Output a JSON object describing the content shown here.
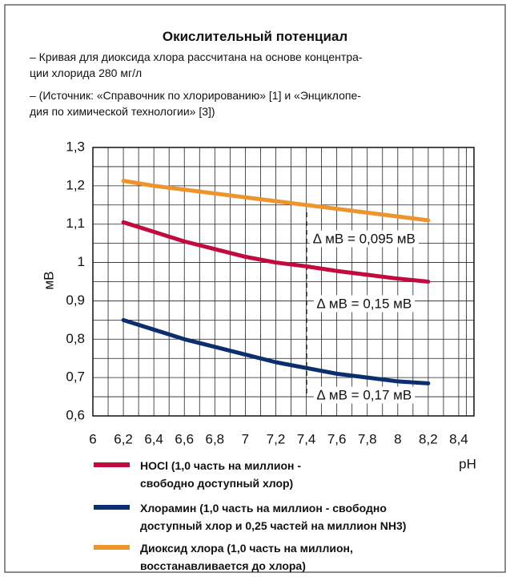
{
  "chart_data": {
    "type": "line",
    "title": "Окислительный потенциал",
    "notes": [
      "– Кривая для диоксида хлора рассчитана на основе концентра-\nции хлорида 280 мг/л",
      "– (Источник: «Справочник по хлорированию» [1] и «Энциклопе-\nдия по химической технологии» [3])"
    ],
    "x": [
      6.2,
      6.4,
      6.6,
      6.8,
      7.0,
      7.2,
      7.4,
      7.6,
      7.8,
      8.0,
      8.2
    ],
    "series": [
      {
        "name": "HOCl (1,0 часть на миллион -\nсвободно доступный хлор)",
        "color": "#c20a3e",
        "values": [
          1.105,
          1.08,
          1.055,
          1.035,
          1.015,
          1.0,
          0.99,
          0.978,
          0.968,
          0.958,
          0.95
        ]
      },
      {
        "name": "Хлорамин (1,0 часть на миллион - свободно\n доступный хлор и 0,25 частей на миллион NH3)",
        "color": "#0b2f6e",
        "values": [
          0.85,
          0.825,
          0.8,
          0.78,
          0.76,
          0.74,
          0.725,
          0.71,
          0.7,
          0.69,
          0.685
        ]
      },
      {
        "name": "Диоксид хлора (1,0 часть на миллион,\nвосстанавливается до хлора)",
        "color": "#ee942b",
        "values": [
          1.213,
          1.2,
          1.19,
          1.18,
          1.17,
          1.16,
          1.15,
          1.14,
          1.13,
          1.12,
          1.11
        ]
      }
    ],
    "xlabel": "pH",
    "ylabel": "мВ",
    "xlim": [
      6,
      8.5
    ],
    "xticks": [
      6,
      {
        "value": 6.2,
        "label": "6,2"
      },
      {
        "value": 6.4,
        "label": "6,4"
      },
      {
        "value": 6.6,
        "label": "6,6"
      },
      {
        "value": 6.8,
        "label": "6,8"
      },
      7,
      {
        "value": 7.2,
        "label": "7,2"
      },
      {
        "value": 7.4,
        "label": "7,4"
      },
      {
        "value": 7.6,
        "label": "7,6"
      },
      {
        "value": 7.8,
        "label": "7,8"
      },
      8,
      {
        "value": 8.2,
        "label": "8,2"
      },
      {
        "value": 8.4,
        "label": "8,4"
      }
    ],
    "ylim": [
      0.6,
      1.3
    ],
    "yticks": [
      {
        "value": 0.6,
        "label": "0,6"
      },
      {
        "value": 0.7,
        "label": "0,7"
      },
      {
        "value": 0.8,
        "label": "0,8"
      },
      {
        "value": 0.9,
        "label": "0,9"
      },
      1,
      {
        "value": 1.1,
        "label": "1,1"
      },
      {
        "value": 1.2,
        "label": "1,2"
      },
      {
        "value": 1.3,
        "label": "1,3"
      }
    ],
    "annotations": [
      "∆ мВ = 0,095 мВ",
      "∆ мВ = 0,15 мВ",
      "∆ мВ = 0,17 мВ"
    ],
    "grid": true
  }
}
